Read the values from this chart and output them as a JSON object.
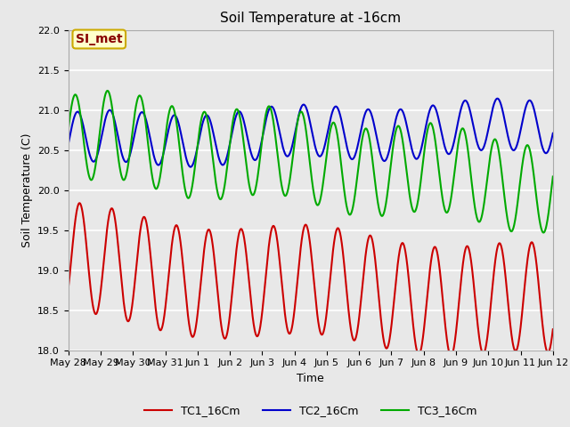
{
  "title": "Soil Temperature at -16cm",
  "xlabel": "Time",
  "ylabel": "Soil Temperature (C)",
  "ylim": [
    18.0,
    22.0
  ],
  "yticks": [
    18.0,
    18.5,
    19.0,
    19.5,
    20.0,
    20.5,
    21.0,
    21.5,
    22.0
  ],
  "background_color": "#e8e8e8",
  "plot_bg_color": "#e8e8e8",
  "grid_color": "white",
  "annotation_text": "SI_met",
  "annotation_facecolor": "#ffffcc",
  "annotation_edgecolor": "#ccaa00",
  "annotation_textcolor": "#880000",
  "tc1_color": "#cc0000",
  "tc2_color": "#0000cc",
  "tc3_color": "#00aa00",
  "tc1_label": "TC1_16Cm",
  "tc2_label": "TC2_16Cm",
  "tc3_label": "TC3_16Cm",
  "xtick_labels": [
    "May 28",
    "May 29",
    "May 30",
    "May 31",
    "Jun 1",
    "Jun 2",
    "Jun 3",
    "Jun 4",
    "Jun 5",
    "Jun 6",
    "Jun 7",
    "Jun 8",
    "Jun 9",
    "Jun 10",
    "Jun 11",
    "Jun 12"
  ],
  "xtick_positions": [
    0,
    1,
    2,
    3,
    4,
    5,
    6,
    7,
    8,
    9,
    10,
    11,
    12,
    13,
    14,
    15
  ],
  "title_fontsize": 11,
  "label_fontsize": 9,
  "tick_fontsize": 8,
  "legend_fontsize": 9,
  "linewidth": 1.5,
  "figwidth": 6.4,
  "figheight": 4.8,
  "dpi": 100
}
